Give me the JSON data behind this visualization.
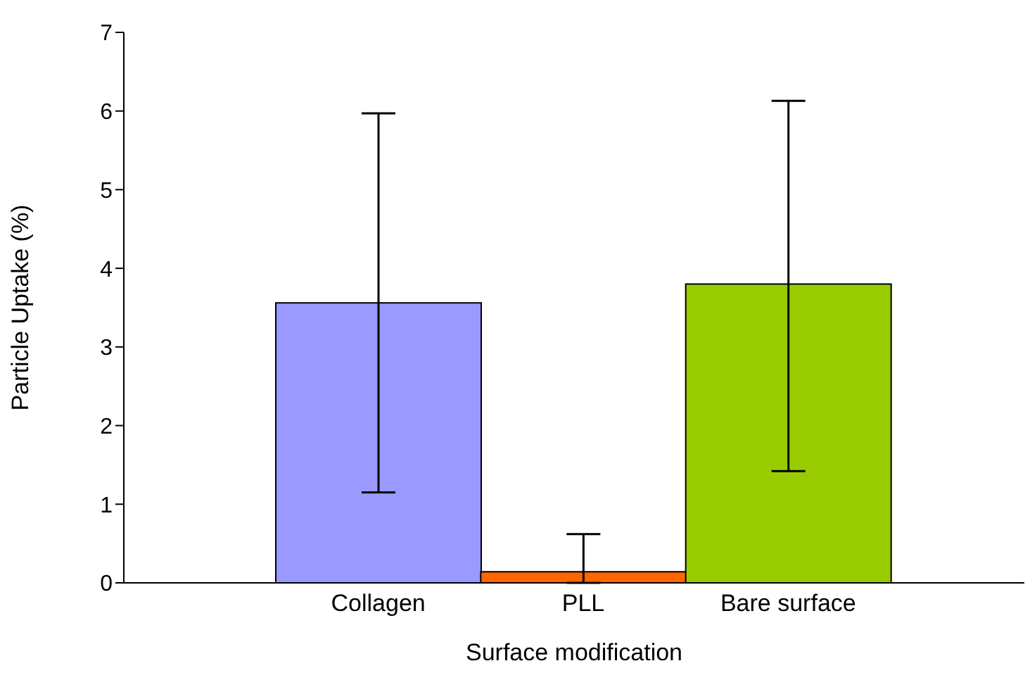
{
  "chart_data": {
    "type": "bar",
    "xlabel": "Surface modification",
    "ylabel": "Particle Uptake (%)",
    "categories": [
      "Collagen",
      "PLL",
      "Bare surface"
    ],
    "values": [
      3.56,
      0.14,
      3.8
    ],
    "colors": [
      "#9999ff",
      "#ff6600",
      "#99cc00"
    ],
    "errors": [
      [
        1.15,
        5.97
      ],
      [
        0,
        0.62
      ],
      [
        1.42,
        6.13
      ]
    ],
    "ylim": [
      0,
      7
    ],
    "yticks": [
      0,
      1,
      2,
      3,
      4,
      5,
      6,
      7
    ],
    "grid": false,
    "legend": false
  }
}
